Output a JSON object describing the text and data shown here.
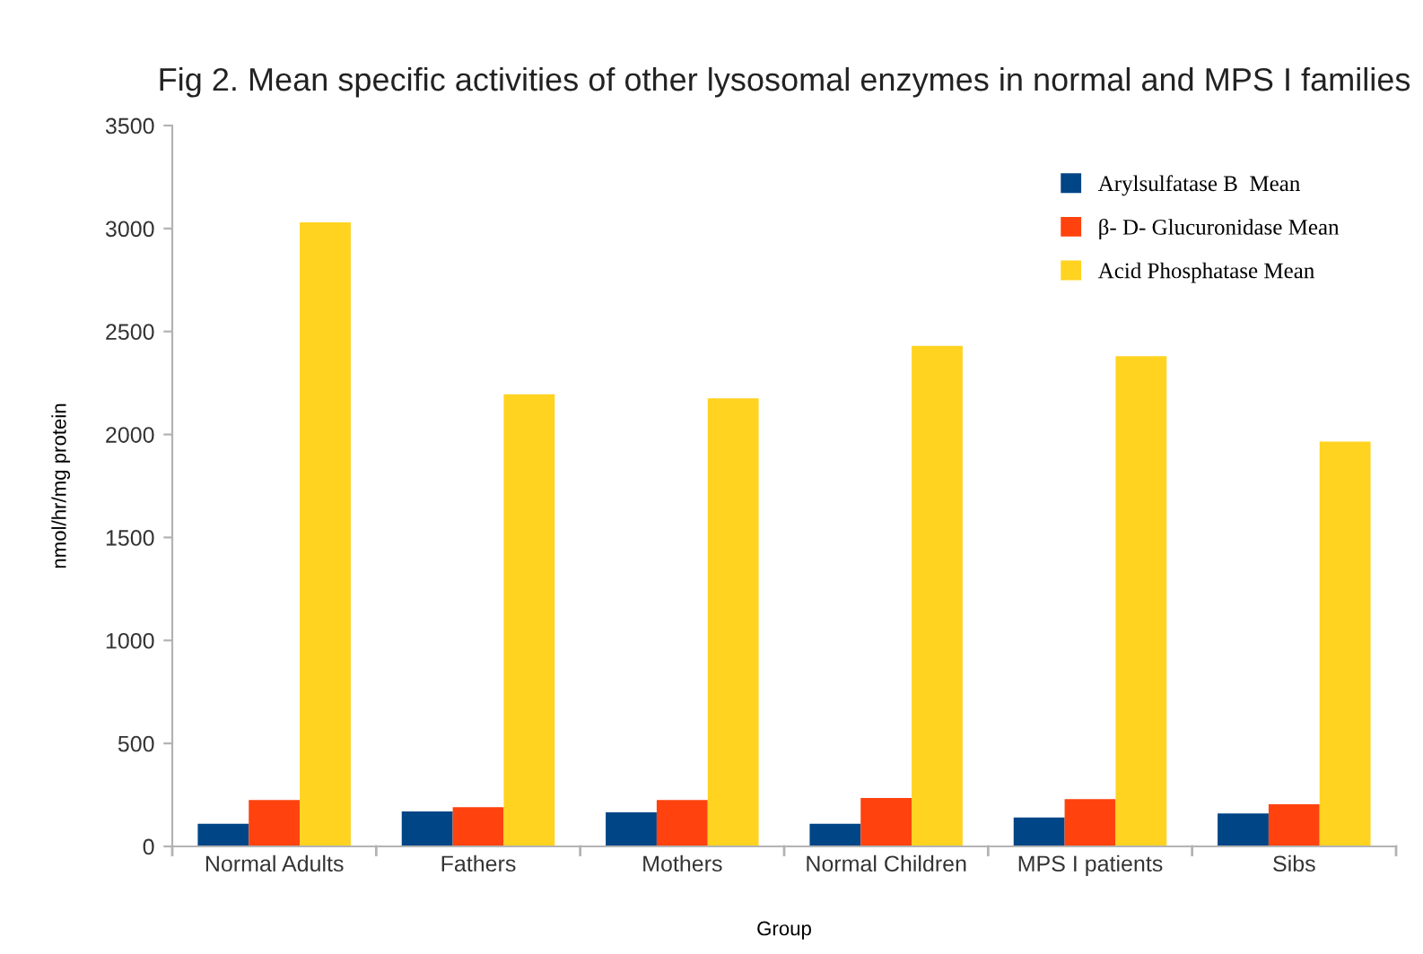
{
  "chart_data": {
    "type": "bar",
    "title": "Fig 2. Mean specific activities of other lysosomal enzymes in normal and MPS I families",
    "xlabel": "Group",
    "ylabel": "nmol/hr/mg protein",
    "categories": [
      "Normal Adults",
      "Fathers",
      "Mothers",
      "Normal Children",
      "MPS I patients",
      "Sibs"
    ],
    "series": [
      {
        "name": "Arylsulfatase B  Mean",
        "color": "#004586",
        "values": [
          110,
          170,
          165,
          110,
          140,
          160
        ]
      },
      {
        "name": "β- D- Glucuronidase Mean",
        "color": "#ff420e",
        "values": [
          225,
          190,
          225,
          235,
          230,
          205
        ]
      },
      {
        "name": "Acid Phosphatase Mean",
        "color": "#ffd320",
        "values": [
          3030,
          2195,
          2175,
          2430,
          2380,
          1965
        ]
      }
    ],
    "ylim": [
      0,
      3500
    ],
    "yticks": [
      0,
      500,
      1000,
      1500,
      2000,
      2500,
      3000,
      3500
    ],
    "grid": false,
    "legend": "top right"
  }
}
